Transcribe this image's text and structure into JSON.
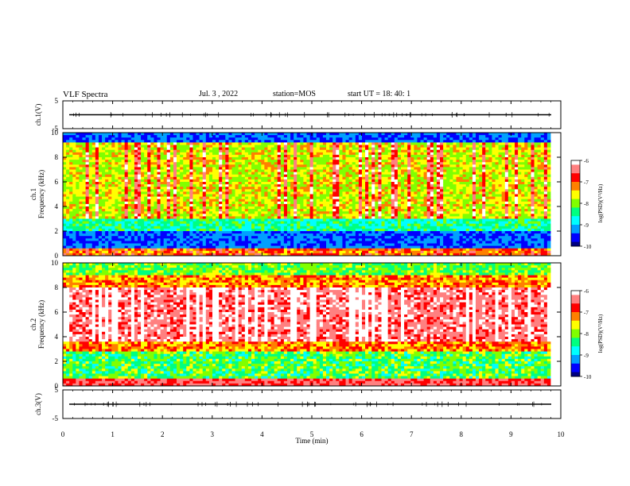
{
  "header": {
    "title": "VLF Spectra",
    "date": "Jul. 3 , 2022",
    "station": "station=MOS",
    "start": "start UT = 18: 40: 1"
  },
  "colors": {
    "spectrum_palette": [
      "#000080",
      "#0000ff",
      "#00a0ff",
      "#00ffff",
      "#00ff80",
      "#80ff00",
      "#ffff00",
      "#ff8000",
      "#ff0000",
      "#ff8080",
      "#ffffff"
    ]
  },
  "chart_data": [
    {
      "type": "line",
      "panel": "ch1-waveform",
      "ylabel": "ch.1(V)",
      "yticks": [
        "5",
        "-5"
      ],
      "ylim": [
        -5,
        5
      ],
      "series": [
        {
          "values_note_level": 0
        }
      ]
    },
    {
      "type": "heatmap",
      "panel": "ch1-spectrogram",
      "ylabel_top": "ch.1",
      "ylabel": "Frequency (kHz)",
      "yticks": [
        "0",
        "2",
        "4",
        "6",
        "8",
        "10"
      ],
      "ylim": [
        0,
        10
      ],
      "xlim": [
        0,
        10
      ],
      "colorbar": {
        "label": "log(PSD)(V²/Hz)",
        "ticks": [
          "-6",
          "-7",
          "-8",
          "-9",
          "-10"
        ],
        "range": [
          -10,
          -6
        ]
      },
      "dominant_band_khz": [
        3,
        9
      ]
    },
    {
      "type": "heatmap",
      "panel": "ch2-spectrogram",
      "ylabel_top": "ch.2",
      "ylabel": "Frequency (kHz)",
      "yticks": [
        "0",
        "2",
        "4",
        "6",
        "8",
        "10"
      ],
      "ylim": [
        0,
        10
      ],
      "xlim": [
        0,
        10
      ],
      "colorbar": {
        "label": "log(PSD)(V²/Hz)",
        "ticks": [
          "-6",
          "-7",
          "-8",
          "-9",
          "-10"
        ],
        "range": [
          -10,
          -6
        ]
      },
      "dominant_band_khz": [
        3.5,
        8
      ]
    },
    {
      "type": "line",
      "panel": "ch3-waveform",
      "ylabel": "ch.3(V)",
      "yticks": [
        "5",
        "-5"
      ],
      "ylim": [
        -5,
        5
      ],
      "xlabel": "Time (min)",
      "xticks": [
        "0",
        "1",
        "2",
        "3",
        "4",
        "5",
        "6",
        "7",
        "8",
        "9",
        "10"
      ],
      "xlim": [
        0,
        10
      ],
      "series": [
        {
          "values_note_level": 0
        }
      ]
    }
  ]
}
